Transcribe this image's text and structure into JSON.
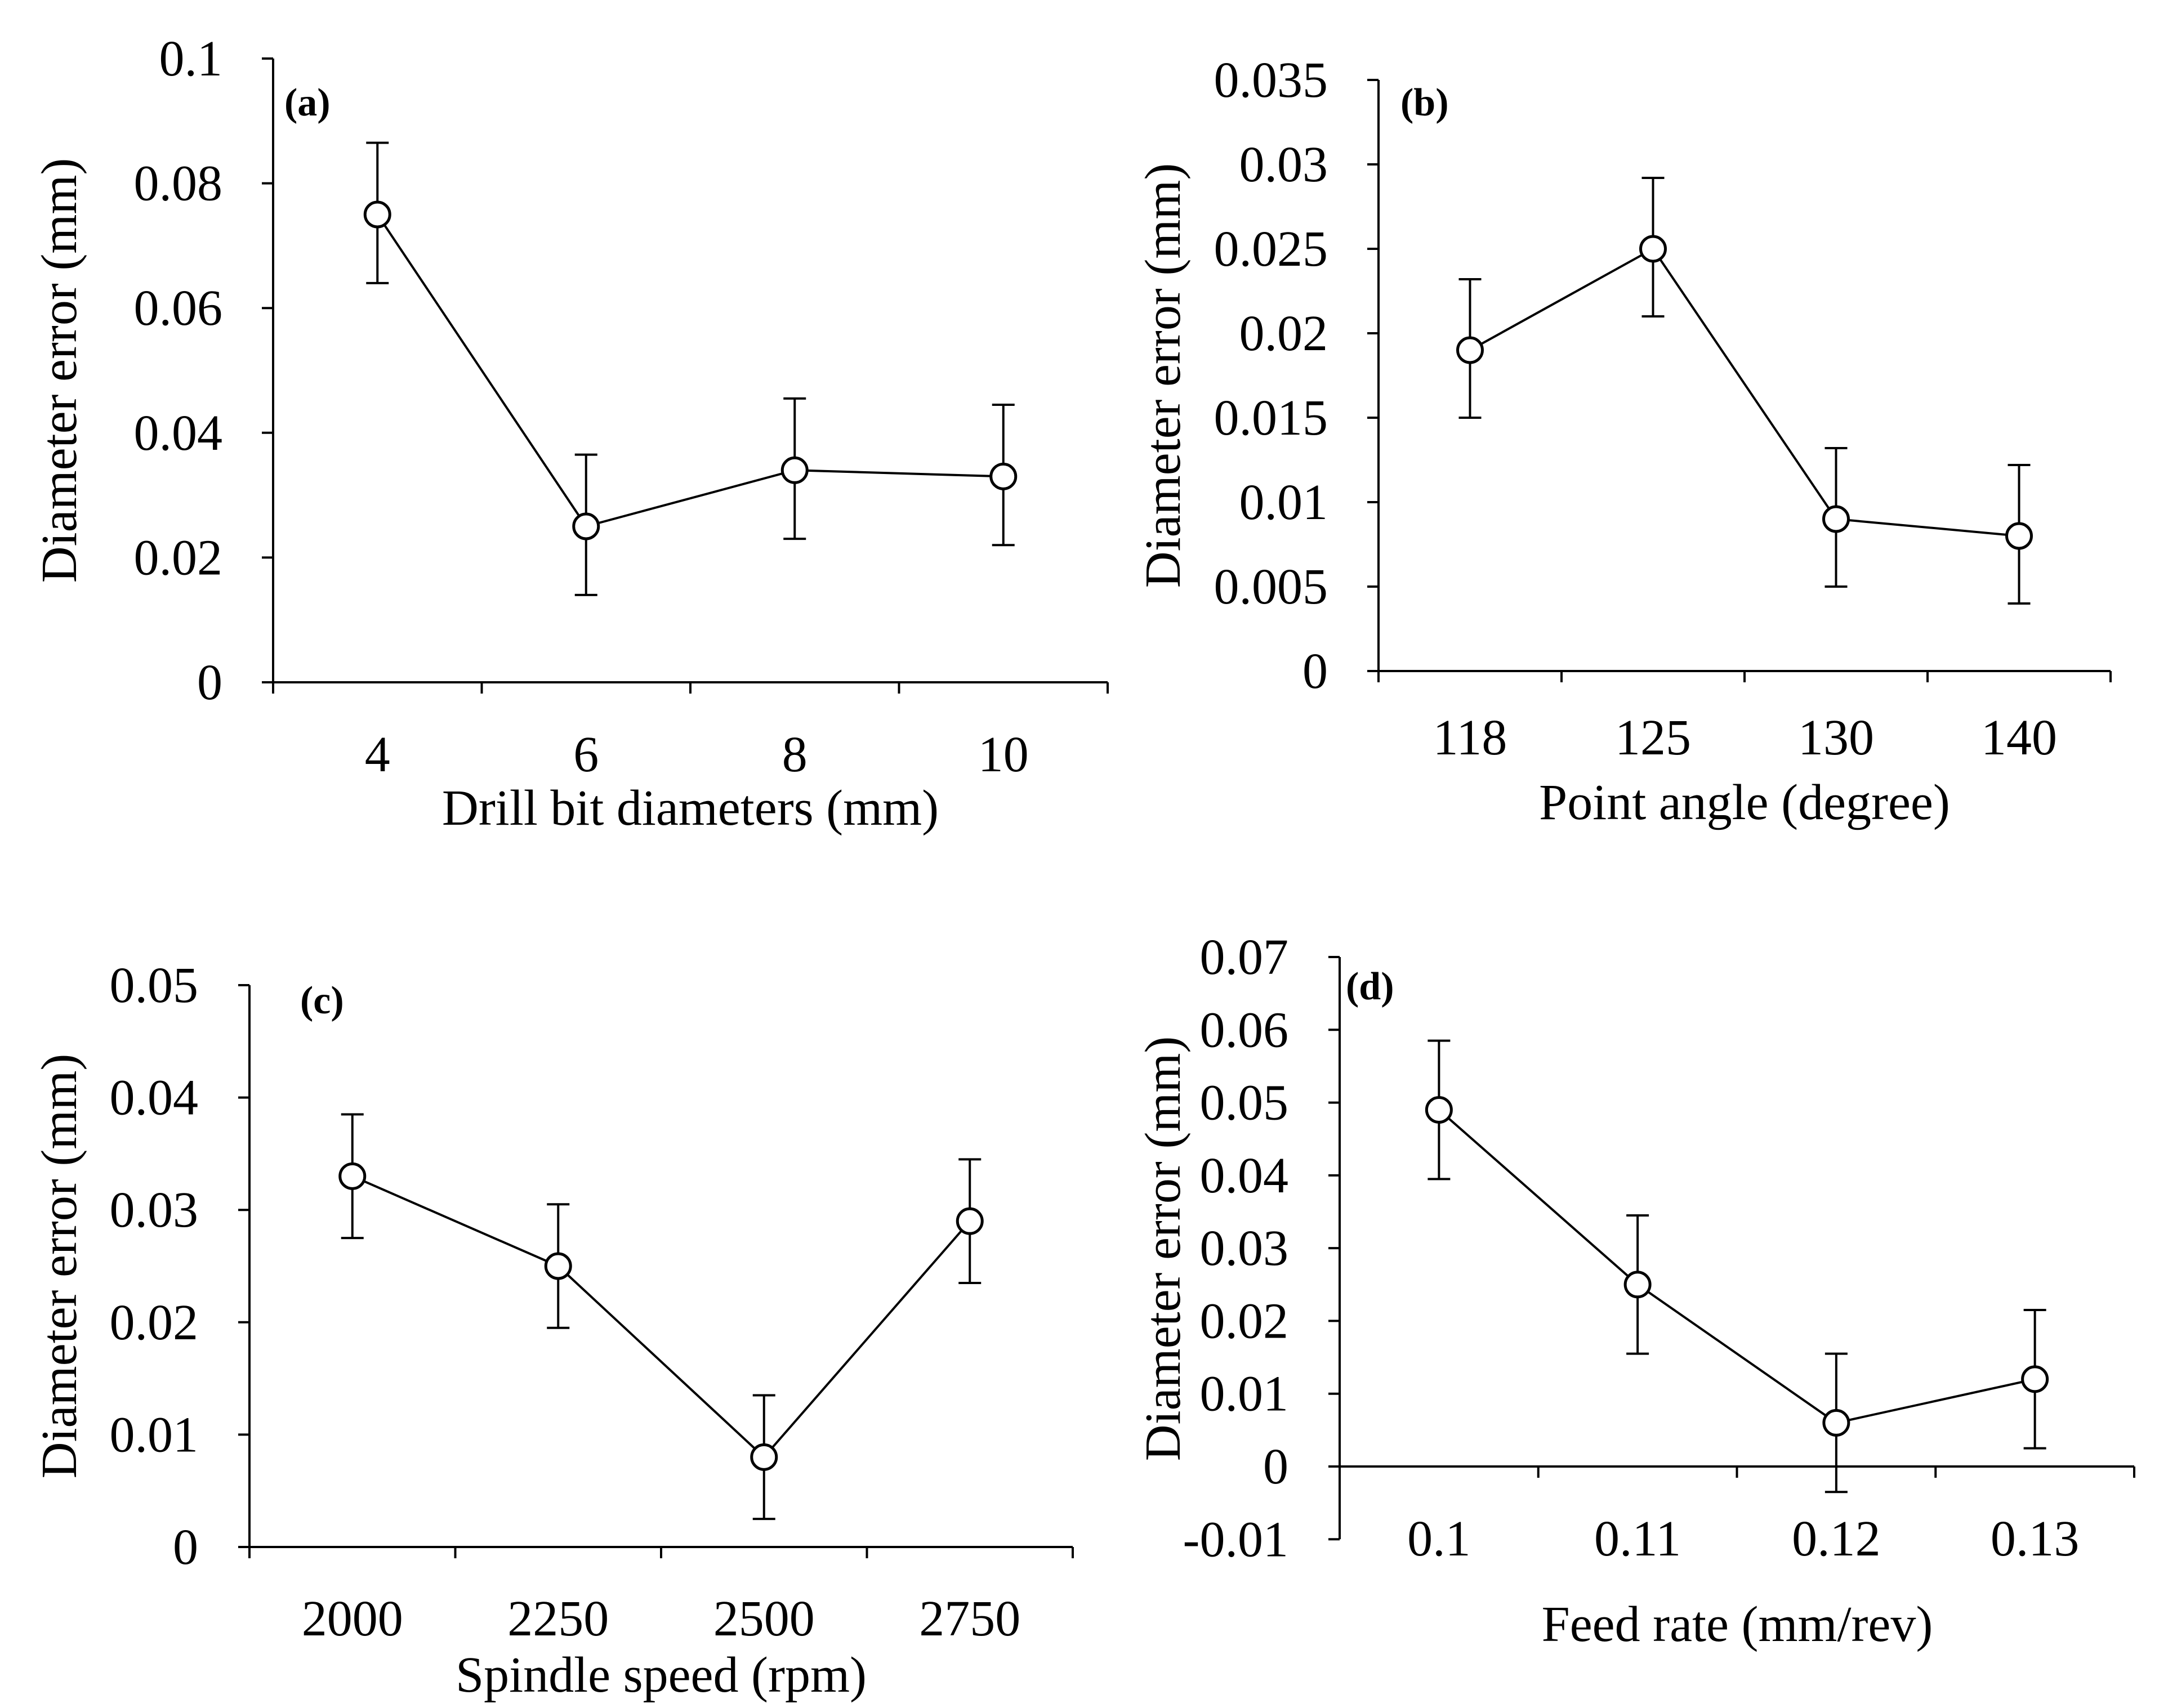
{
  "chart_data": [
    {
      "type": "line",
      "panel_label": "(a)",
      "title": "",
      "xlabel": "Drill bit diameters (mm)",
      "ylabel": "Diameter error (mm)",
      "categories": [
        "4",
        "6",
        "8",
        "10"
      ],
      "values": [
        0.075,
        0.025,
        0.034,
        0.033
      ],
      "error_upper": [
        0.0865,
        0.0365,
        0.0455,
        0.0445
      ],
      "error_lower": [
        0.064,
        0.014,
        0.023,
        0.022
      ],
      "ylim": [
        0,
        0.1
      ],
      "yticks": [
        0,
        0.02,
        0.04,
        0.06,
        0.08,
        0.1
      ],
      "ytick_labels": [
        "0",
        "0.02",
        "0.04",
        "0.06",
        "0.08",
        "0.1"
      ],
      "marker": "open-circle",
      "grid": false
    },
    {
      "type": "line",
      "panel_label": "(b)",
      "title": "",
      "xlabel": "Point angle (degree)",
      "ylabel": "Diameter error (mm)",
      "categories": [
        "118",
        "125",
        "130",
        "140"
      ],
      "values": [
        0.019,
        0.025,
        0.009,
        0.008
      ],
      "error_upper": [
        0.0232,
        0.0292,
        0.0132,
        0.0122
      ],
      "error_lower": [
        0.015,
        0.021,
        0.005,
        0.004
      ],
      "ylim": [
        0,
        0.035
      ],
      "yticks": [
        0,
        0.005,
        0.01,
        0.015,
        0.02,
        0.025,
        0.03,
        0.035
      ],
      "ytick_labels": [
        "0",
        "0.005",
        "0.01",
        "0.015",
        "0.02",
        "0.025",
        "0.03",
        "0.035"
      ],
      "marker": "open-circle",
      "grid": false
    },
    {
      "type": "line",
      "panel_label": "(c)",
      "title": "",
      "xlabel": "Spindle speed (rpm)",
      "ylabel": "Diameter error (mm)",
      "categories": [
        "2000",
        "2250",
        "2500",
        "2750"
      ],
      "values": [
        0.033,
        0.025,
        0.008,
        0.029
      ],
      "error_upper": [
        0.0385,
        0.0305,
        0.0135,
        0.0345
      ],
      "error_lower": [
        0.0275,
        0.0195,
        0.0025,
        0.0235
      ],
      "ylim": [
        0,
        0.05
      ],
      "yticks": [
        0,
        0.01,
        0.02,
        0.03,
        0.04,
        0.05
      ],
      "ytick_labels": [
        "0",
        "0.01",
        "0.02",
        "0.03",
        "0.04",
        "0.05"
      ],
      "marker": "open-circle",
      "grid": false
    },
    {
      "type": "line",
      "panel_label": "(d)",
      "title": "",
      "xlabel": "Feed rate (mm/rev)",
      "ylabel": "Diameter error (mm)",
      "categories": [
        "0.1",
        "0.11",
        "0.12",
        "0.13"
      ],
      "values": [
        0.049,
        0.025,
        0.006,
        0.012
      ],
      "error_upper": [
        0.0585,
        0.0345,
        0.0155,
        0.0215
      ],
      "error_lower": [
        0.0395,
        0.0155,
        -0.0035,
        0.0025
      ],
      "ylim": [
        -0.01,
        0.07
      ],
      "yticks": [
        -0.01,
        0,
        0.01,
        0.02,
        0.03,
        0.04,
        0.05,
        0.06,
        0.07
      ],
      "ytick_labels": [
        "-0.01",
        "0",
        "0.01",
        "0.02",
        "0.03",
        "0.04",
        "0.05",
        "0.06",
        "0.07"
      ],
      "marker": "open-circle",
      "grid": false
    }
  ]
}
